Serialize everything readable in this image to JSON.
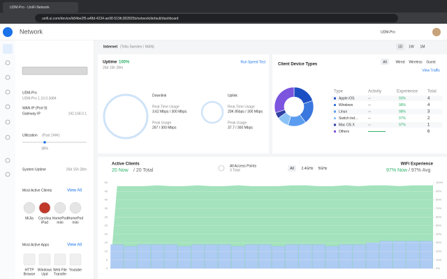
{
  "browser": {
    "tab_title": "UDM-Pro - UniFi Network",
    "url": "unifi.ui.com/device/b84be2f5-a48d-4234-ae98-519fc382825b/network/default/dashboard"
  },
  "header": {
    "app": "Network",
    "device": "UDM-Pro"
  },
  "device_panel": {
    "name": "UDM-Pro",
    "version": "UDM-Pro 1.10.0.3d84",
    "wan_ip_label": "WAN IP (Port 9)",
    "gateway_label": "Gateway IP",
    "gateway_ip": "192.168.0.1",
    "utilization_label": "Utilization",
    "utilization_period": "(Past 24Hr)",
    "utilization": "38%",
    "uptime_label": "System Uptime",
    "uptime": "26d 15h 28m"
  },
  "most_active_clients": {
    "title": "Most Active Clients",
    "link": "View All",
    "clients": [
      [
        "MiJia"
      ],
      [
        "Carolina",
        "iPad"
      ],
      [
        "HomePod",
        "mini"
      ],
      [
        "HomePod",
        "mini"
      ]
    ]
  },
  "most_active_apps": {
    "title": "Most Active Apps",
    "link": "View All",
    "apps": [
      [
        "HTTP",
        "Browse"
      ],
      [
        "Windows",
        "Upd"
      ],
      [
        "Web File",
        "Transfer"
      ],
      [
        "Youtube"
      ]
    ]
  },
  "internet": {
    "title": "Internet",
    "isp": "(Telia Sweden / WAN)",
    "ranges": [
      "1D",
      "1W",
      "1M"
    ]
  },
  "uptime": {
    "label": "Uptime",
    "value": "100%",
    "duration": "26d 15h 28m",
    "speed_test": "Run Speed Test",
    "downlink": {
      "title": "Downlink",
      "rt_label": "Real-Time Usage",
      "rt": "3.62 Mbps / 300 Mbps",
      "peak_label": "Peak Usage",
      "peak": "267 / 300 Mbps"
    },
    "uplink": {
      "title": "Uplink",
      "rt_label": "Real-Time Usage",
      "rt": "20K 85bps / 300 Mbps",
      "peak_label": "Peak Usage",
      "peak": "37.7 / 300 Mbps"
    }
  },
  "client_devices": {
    "title": "Client Device Types",
    "tabs": [
      "All",
      "Wired",
      "Wireless",
      "Guest"
    ],
    "link": "View Traffic",
    "columns": [
      "Type",
      "Activity",
      "Experience",
      "Total"
    ],
    "experience": [
      "93%",
      "98%",
      "98%",
      "97%",
      "97%"
    ]
  },
  "active_clients": {
    "title": "Active Clients",
    "now": "20 Now",
    "total": "/ 20 Total",
    "ap_filter": "All Access Points",
    "ap_total": "3 Total",
    "bands": [
      "All",
      "2.4GHz",
      "5GHz"
    ],
    "wifi_title": "WiFi Experience",
    "wifi_now": "97% Now",
    "wifi_avg": "/ 97% Avg"
  },
  "chart_data": [
    {
      "type": "pie",
      "categories": [
        "Apple iOS",
        "Windows",
        "Linux",
        "Switch Ind...",
        "Mac OS X",
        "Others"
      ],
      "values": [
        4,
        4,
        3,
        2,
        1,
        6
      ],
      "colors": [
        "#1d4fc4",
        "#3a78df",
        "#5a9cef",
        "#8cc3f6",
        "#2f3fa3",
        "#7b55de"
      ]
    },
    {
      "type": "bar",
      "categories": [
        null,
        null,
        null,
        null,
        null,
        null,
        null,
        null,
        null,
        null,
        null,
        null,
        null,
        null,
        null,
        null,
        null,
        null,
        null,
        null,
        null,
        null,
        null,
        null
      ],
      "series": [
        {
          "color": "#aecbf3",
          "values": [
            14,
            13,
            14,
            14,
            14,
            13,
            14,
            14,
            14,
            13,
            14,
            14,
            13,
            14,
            14,
            14,
            13,
            14,
            14,
            15,
            16,
            16,
            16,
            16
          ]
        },
        {
          "color": "#a3e2bc",
          "axis": "y2",
          "type": "area",
          "values": [
            96,
            96,
            96,
            97,
            96,
            96,
            97,
            96,
            96,
            97,
            96,
            96,
            96,
            97,
            97,
            96,
            96,
            97,
            96,
            97,
            97,
            96,
            97,
            97
          ]
        }
      ],
      "ylim": [
        0,
        50
      ],
      "yticks": [
        0,
        5,
        10,
        15,
        20,
        25,
        30,
        35,
        40,
        45,
        50
      ],
      "y2lim": [
        0,
        100
      ],
      "y2ticks": [
        {
          "value": 0,
          "label": "0%"
        },
        {
          "value": 10,
          "label": "10%"
        },
        {
          "value": 20,
          "label": "20%"
        },
        {
          "value": 30,
          "label": "30%"
        },
        {
          "value": 40,
          "label": "40%"
        },
        {
          "value": 50,
          "label": "50%"
        },
        {
          "value": 60,
          "label": "60%"
        },
        {
          "value": 70,
          "label": "70%"
        },
        {
          "value": 80,
          "label": "80%"
        },
        {
          "value": 90,
          "label": "90%"
        },
        {
          "value": 100,
          "label": "100%"
        }
      ],
      "grid": true
    }
  ]
}
